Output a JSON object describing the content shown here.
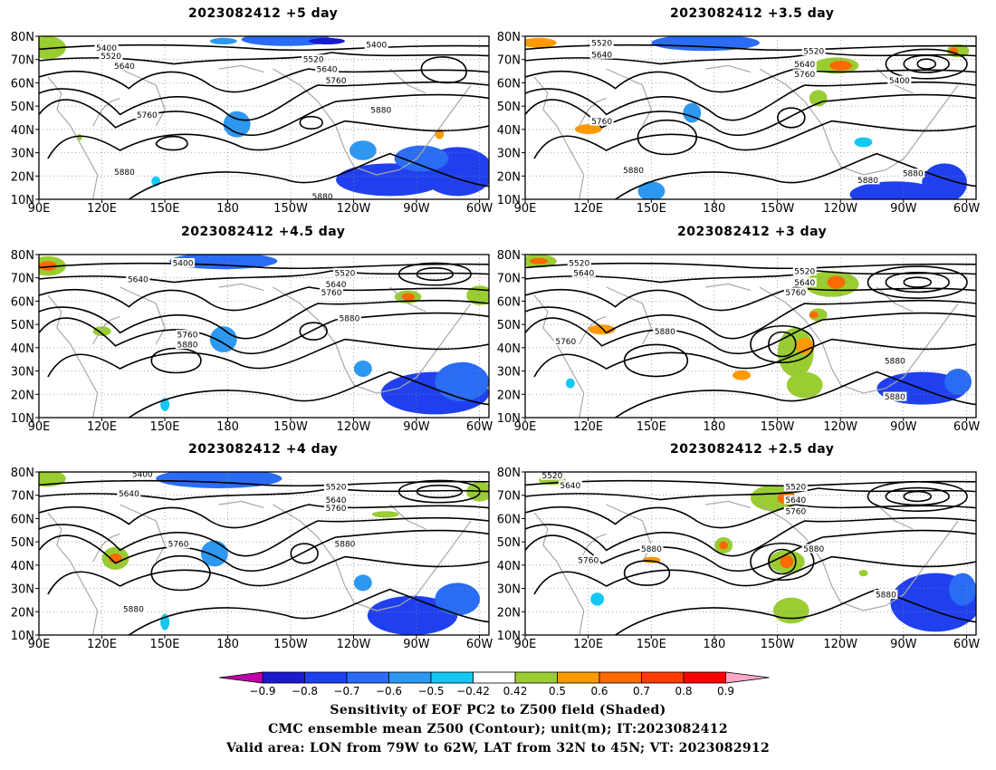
{
  "panels": [
    {
      "title": "2023082412 +5 day",
      "labels": [
        "5400",
        "5520",
        "5640",
        "5400",
        "5520",
        "5640",
        "5760",
        "5760",
        "5880",
        "5880",
        "5880"
      ]
    },
    {
      "title": "2023082412 +3.5 day",
      "labels": [
        "5520",
        "5640",
        "5520",
        "5640",
        "5760",
        "5400",
        "5760",
        "5880",
        "5880",
        "5880"
      ]
    },
    {
      "title": "2023082412 +4.5 day",
      "labels": [
        "5400",
        "5640",
        "5520",
        "5640",
        "5760",
        "5760",
        "5880",
        "5880"
      ]
    },
    {
      "title": "2023082412 +3 day",
      "labels": [
        "5520",
        "5640",
        "5520",
        "5640",
        "5760",
        "5880",
        "5760",
        "5880",
        "5880"
      ]
    },
    {
      "title": "2023082412 +4 day",
      "labels": [
        "5400",
        "5640",
        "5520",
        "5640",
        "5760",
        "5760",
        "5880",
        "5880"
      ]
    },
    {
      "title": "2023082412 +2.5 day",
      "labels": [
        "5520",
        "5640",
        "5520",
        "5640",
        "5760",
        "5880",
        "5760",
        "5880",
        "5880"
      ]
    }
  ],
  "axes": {
    "lat_ticks": [
      "80N",
      "70N",
      "60N",
      "50N",
      "40N",
      "30N",
      "20N",
      "10N"
    ],
    "lon_ticks": [
      "90E",
      "120E",
      "150E",
      "180",
      "150W",
      "120W",
      "90W",
      "60W"
    ]
  },
  "colorbar": {
    "labels": [
      "−0.9",
      "−0.8",
      "−0.7",
      "−0.6",
      "−0.5",
      "−0.42",
      "0.42",
      "0.5",
      "0.6",
      "0.7",
      "0.8",
      "0.9"
    ],
    "colors": [
      "#1a1ad0",
      "#2040f0",
      "#2a6cf4",
      "#2c98f2",
      "#14c8f4",
      "#ffffff",
      "#9acd32",
      "#ff9900",
      "#ff6a00",
      "#ff3c00",
      "#ff0000"
    ],
    "low_end_color": "#c000a8",
    "high_end_color": "#ffa8cc"
  },
  "caption": {
    "line1": "Sensitivity of EOF PC2 to Z500 field (Shaded)",
    "line2": "CMC ensemble mean Z500 (Contour); unit(m); IT:2023082412",
    "line3": "Valid area: LON from 79W to 62W, LAT from 32N to 45N; VT: 2023082912"
  },
  "colors": {
    "contour": "#000000",
    "coast": "#a8a8a8",
    "grid": "#888888"
  }
}
